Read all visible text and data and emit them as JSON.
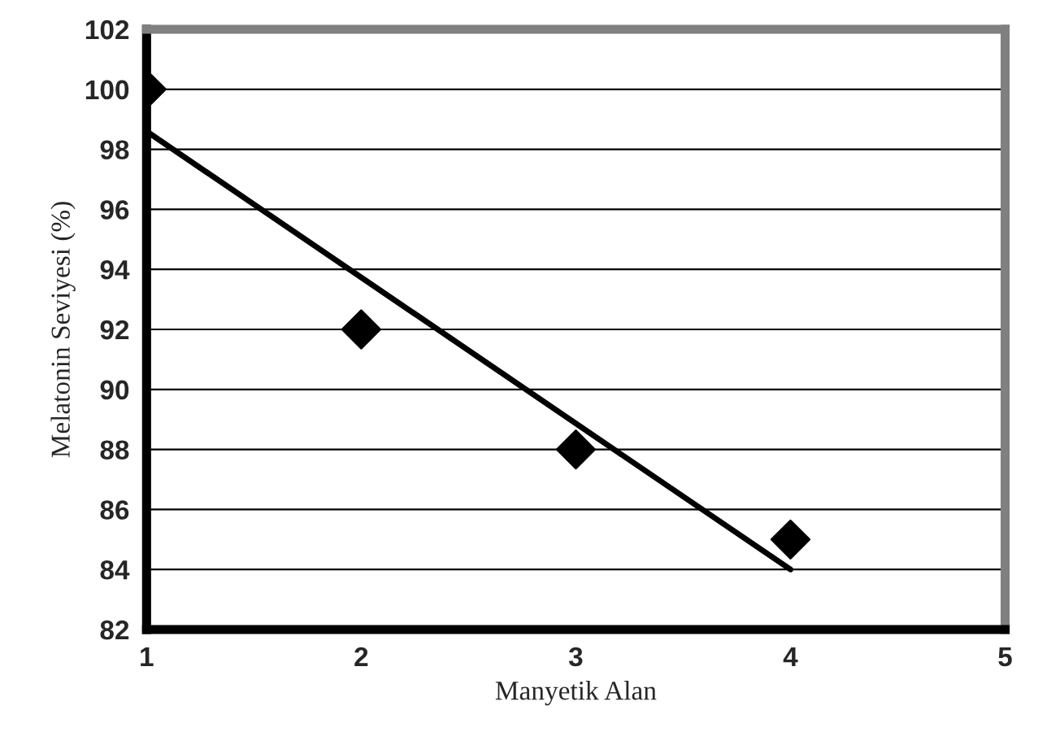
{
  "chart_data": {
    "type": "scatter",
    "xlabel": "Manyetik Alan",
    "ylabel": "Melatonin Seviyesi (%)",
    "series": [
      {
        "color": "#000000",
        "marker": "diamond",
        "x": [
          1,
          2,
          3,
          4
        ],
        "values": [
          100,
          92,
          88,
          85
        ]
      },
      {
        "type": "line",
        "color": "#000000",
        "marker": "none",
        "x": [
          1,
          4
        ],
        "values": [
          98.6,
          84
        ]
      }
    ],
    "xlim": [
      1,
      5
    ],
    "ylim": [
      82,
      102
    ],
    "xticks": [
      1,
      2,
      3,
      4,
      5
    ],
    "yticks": [
      82,
      84,
      86,
      88,
      90,
      92,
      94,
      96,
      98,
      100,
      102
    ],
    "grid": "y"
  }
}
